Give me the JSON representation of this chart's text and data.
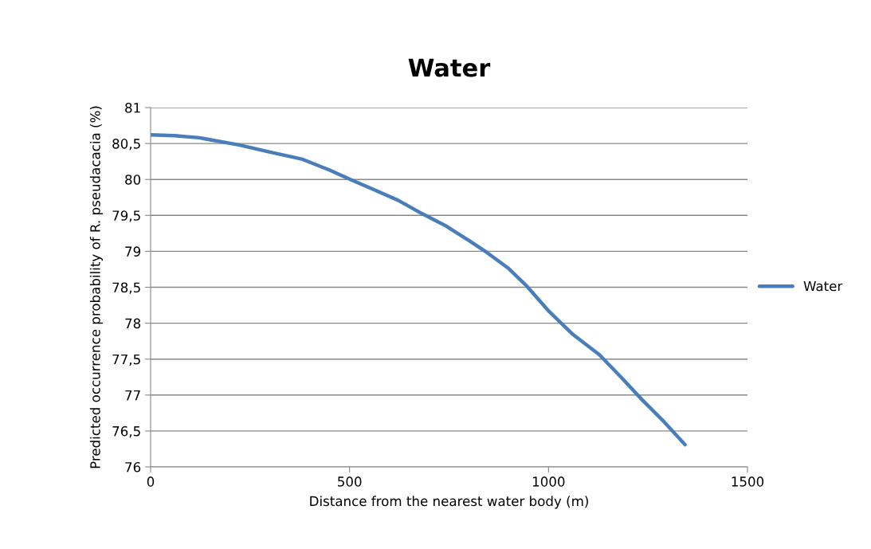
{
  "chart_data": {
    "type": "line",
    "title": "Water",
    "xlabel": "Distance from the nearest water body (m)",
    "ylabel": "Predicted occurrence probability of R. pseudacacia (%)",
    "series": [
      {
        "name": "Water",
        "color": "#4a7ebb",
        "x": [
          0,
          60,
          122,
          222,
          300,
          382,
          450,
          502,
          560,
          622,
          680,
          743,
          800,
          846,
          900,
          943,
          1002,
          1062,
          1128,
          1182,
          1236,
          1290,
          1343
        ],
        "values": [
          80.62,
          80.61,
          80.58,
          80.48,
          80.38,
          80.28,
          80.13,
          80.0,
          79.86,
          79.71,
          79.53,
          79.35,
          79.15,
          78.98,
          78.76,
          78.53,
          78.16,
          77.84,
          77.56,
          77.25,
          76.93,
          76.63,
          76.31
        ]
      }
    ],
    "xlim": [
      0,
      1500
    ],
    "xticks": [
      0,
      500,
      1000,
      1500
    ],
    "ylim": [
      76,
      81
    ],
    "yticks": [
      76,
      {
        "value": 76.5,
        "label": "76,5"
      },
      77,
      {
        "value": 77.5,
        "label": "77,5"
      },
      78,
      {
        "value": 78.5,
        "label": "78,5"
      },
      79,
      {
        "value": 79.5,
        "label": "79,5"
      },
      80,
      {
        "value": 80.5,
        "label": "80,5"
      },
      81
    ],
    "grid": "y",
    "legend": "right",
    "marker": "none",
    "line_style": "solid"
  }
}
